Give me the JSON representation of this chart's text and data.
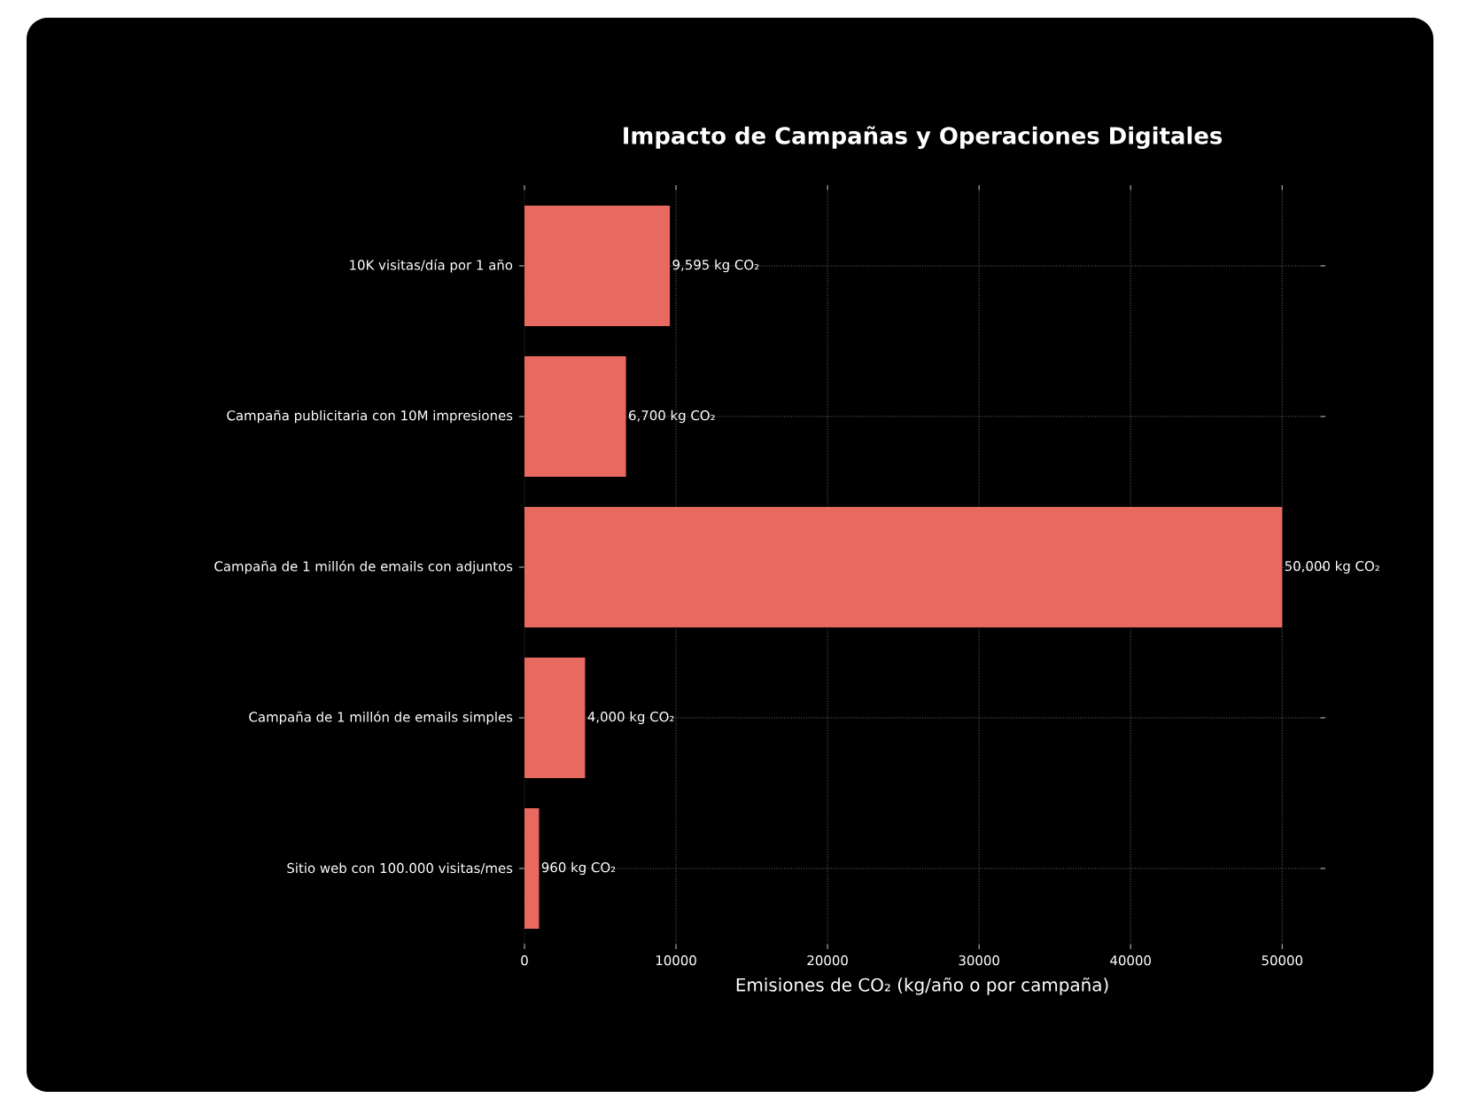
{
  "chart_data": {
    "type": "bar",
    "orientation": "horizontal",
    "title": "Impacto de Campañas y Operaciones Digitales",
    "xlabel": "Emisiones de CO₂ (kg/año o por campaña)",
    "categories": [
      "10K visitas/día por 1 año",
      "Campaña publicitaria con 10M impresiones",
      "Campaña de 1 millón de emails con adjuntos",
      "Campaña de 1 millón de emails simples",
      "Sitio web con 100.000 visitas/mes"
    ],
    "values": [
      9595,
      6700,
      50000,
      4000,
      960
    ],
    "value_labels": [
      "9,595 kg CO₂",
      "6,700 kg CO₂",
      "50,000 kg CO₂",
      "4,000 kg CO₂",
      "960 kg CO₂"
    ],
    "color": "#e8695f",
    "xlim": [
      0,
      52500
    ],
    "xticks": [
      0,
      10000,
      20000,
      30000,
      40000,
      50000
    ],
    "grid": true
  }
}
